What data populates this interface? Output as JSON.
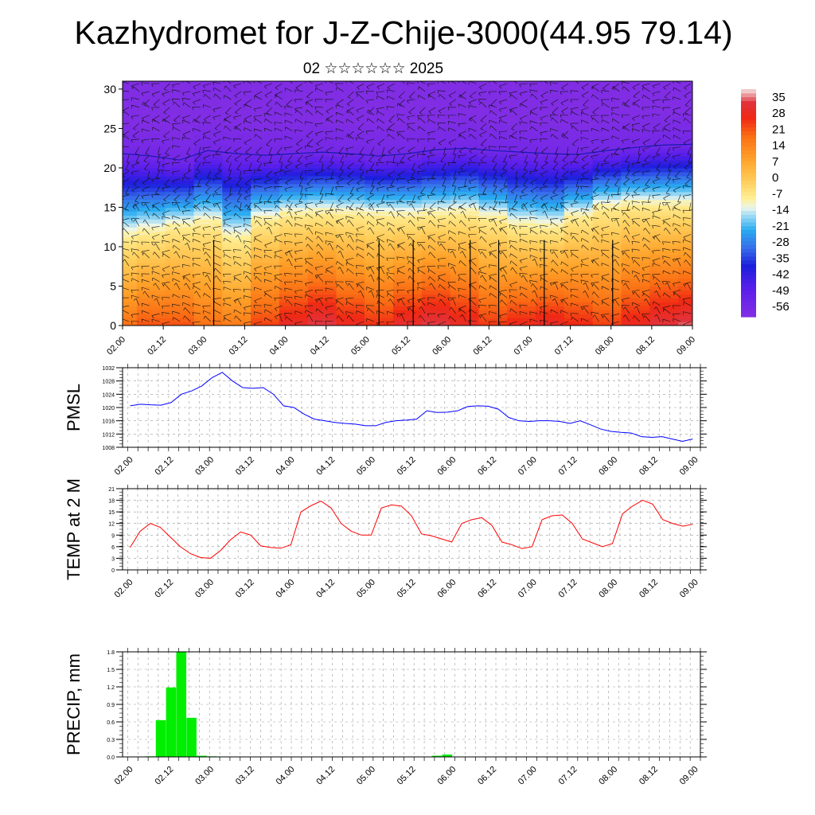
{
  "title": "Kazhydromet for J-Z-Chije-3000(44.95 79.14)",
  "subtitle": "02 ☆☆☆☆☆☆ 2025",
  "colors": {
    "pmsl_line": "#0000ff",
    "temp_line": "#ff0000",
    "precip_bar": "#00ee00",
    "grid": "#9a9a9a"
  },
  "chart_data": [
    {
      "type": "heatmap",
      "name": "cross-section",
      "x_tick_labels": [
        "02.00",
        "02.12",
        "03.00",
        "03.12",
        "04.00",
        "04.12",
        "05.00",
        "05.12",
        "06.00",
        "06.12",
        "07.00",
        "07.12",
        "08.00",
        "08.12",
        "09.00"
      ],
      "y_ticks": [
        0,
        5,
        10,
        15,
        20,
        25,
        30
      ],
      "ylim": [
        0,
        31
      ],
      "colorbar_labels": [
        "35",
        "28",
        "21",
        "14",
        "7",
        "0",
        "-7",
        "-14",
        "-21",
        "-28",
        "-35",
        "-42",
        "-49",
        "-56"
      ],
      "colorbar_range": [
        -60,
        38
      ],
      "overlay": "wind barbs",
      "freezing_level_km": [
        11.2,
        11.8,
        12.5,
        13.0,
        11.0,
        13.4,
        14.1,
        14.3,
        14.2,
        14.0,
        13.9,
        14.1,
        14.3,
        13.6,
        12.6,
        12.4,
        13.8,
        15.0,
        15.4,
        15.3,
        15.3
      ],
      "tropopause_km": [
        21.8,
        21.5,
        21.0,
        22.2,
        21.8,
        21.6,
        21.8,
        22.0,
        21.8,
        21.5,
        21.8,
        22.3,
        22.5,
        22.2,
        22.0,
        21.8,
        21.7,
        22.2,
        22.6,
        22.9,
        23.0
      ],
      "surface_temp_c": [
        18,
        22,
        22,
        18,
        16,
        24,
        30,
        34,
        29,
        26,
        31,
        34,
        30,
        25,
        28,
        30,
        27,
        24,
        29,
        33,
        35
      ]
    },
    {
      "type": "line",
      "ylabel": "PMSL",
      "x_tick_labels": [
        "02.00",
        "02.12",
        "03.00",
        "03.12",
        "04.00",
        "04.12",
        "05.00",
        "05.12",
        "06.00",
        "06.12",
        "07.00",
        "07.12",
        "08.00",
        "08.12",
        "09.00"
      ],
      "ylim": [
        1008,
        1032
      ],
      "y_ticks": [
        1008,
        1012,
        1016,
        1020,
        1024,
        1028,
        1032
      ],
      "values": [
        1020.5,
        1021,
        1020.8,
        1020.7,
        1021.5,
        1024,
        1025,
        1026.5,
        1029,
        1030.6,
        1028,
        1026,
        1025.8,
        1026,
        1024,
        1020.5,
        1020,
        1018,
        1016.5,
        1016,
        1015.5,
        1015.2,
        1015,
        1014.5,
        1014.5,
        1015.5,
        1016,
        1016.2,
        1016.5,
        1019,
        1018.5,
        1018.6,
        1019,
        1020.3,
        1020.5,
        1020.4,
        1019.5,
        1017,
        1016,
        1015.8,
        1016,
        1016,
        1015.8,
        1015.2,
        1016,
        1014.8,
        1013.5,
        1012.8,
        1012.5,
        1012.3,
        1011.2,
        1011,
        1011.2,
        1010.5,
        1009.8,
        1010.5
      ]
    },
    {
      "type": "line",
      "ylabel": "TEMP at 2 M",
      "x_tick_labels": [
        "02.00",
        "02.12",
        "03.00",
        "03.12",
        "04.00",
        "04.12",
        "05.00",
        "05.12",
        "06.00",
        "06.12",
        "07.00",
        "07.12",
        "08.00",
        "08.12",
        "09.00"
      ],
      "ylim": [
        0,
        21
      ],
      "y_ticks": [
        0,
        3,
        6,
        9,
        12,
        15,
        18,
        21
      ],
      "values": [
        5.8,
        10,
        12,
        11,
        8.5,
        6,
        4.2,
        3.2,
        3,
        5,
        7.8,
        9.8,
        9,
        6.2,
        5.8,
        5.6,
        6.5,
        15,
        16.6,
        17.8,
        16,
        12,
        10,
        9,
        9,
        16,
        16.8,
        16.5,
        14,
        9.3,
        8.8,
        8,
        7.2,
        12,
        13,
        13.5,
        11.5,
        7.2,
        6.5,
        5.5,
        6,
        13,
        14,
        14.2,
        12,
        8,
        7,
        6,
        6.8,
        14.5,
        16.5,
        18,
        17,
        13,
        12,
        11.3,
        11.8
      ]
    },
    {
      "type": "bar",
      "ylabel": "PRECIP, mm",
      "x_tick_labels": [
        "02.00",
        "02.12",
        "03.00",
        "03.12",
        "04.00",
        "04.12",
        "05.00",
        "05.12",
        "06.00",
        "06.12",
        "07.00",
        "07.12",
        "08.00",
        "08.12",
        "09.00"
      ],
      "ylim": [
        0,
        1.8
      ],
      "y_ticks": [
        "0.0",
        "0.3",
        "0.6",
        "0.9",
        "1.2",
        "1.5",
        "1.8"
      ],
      "values": [
        0,
        0,
        0.01,
        0.63,
        1.19,
        1.8,
        0.67,
        0.02,
        0.01,
        0,
        0,
        0,
        0,
        0,
        0,
        0,
        0,
        0,
        0,
        0,
        0,
        0,
        0,
        0,
        0,
        0,
        0,
        0,
        0,
        0,
        0.02,
        0.04,
        0,
        0,
        0,
        0,
        0,
        0,
        0,
        0,
        0,
        0,
        0,
        0,
        0,
        0,
        0,
        0,
        0,
        0,
        0,
        0,
        0,
        0,
        0,
        0
      ]
    }
  ]
}
